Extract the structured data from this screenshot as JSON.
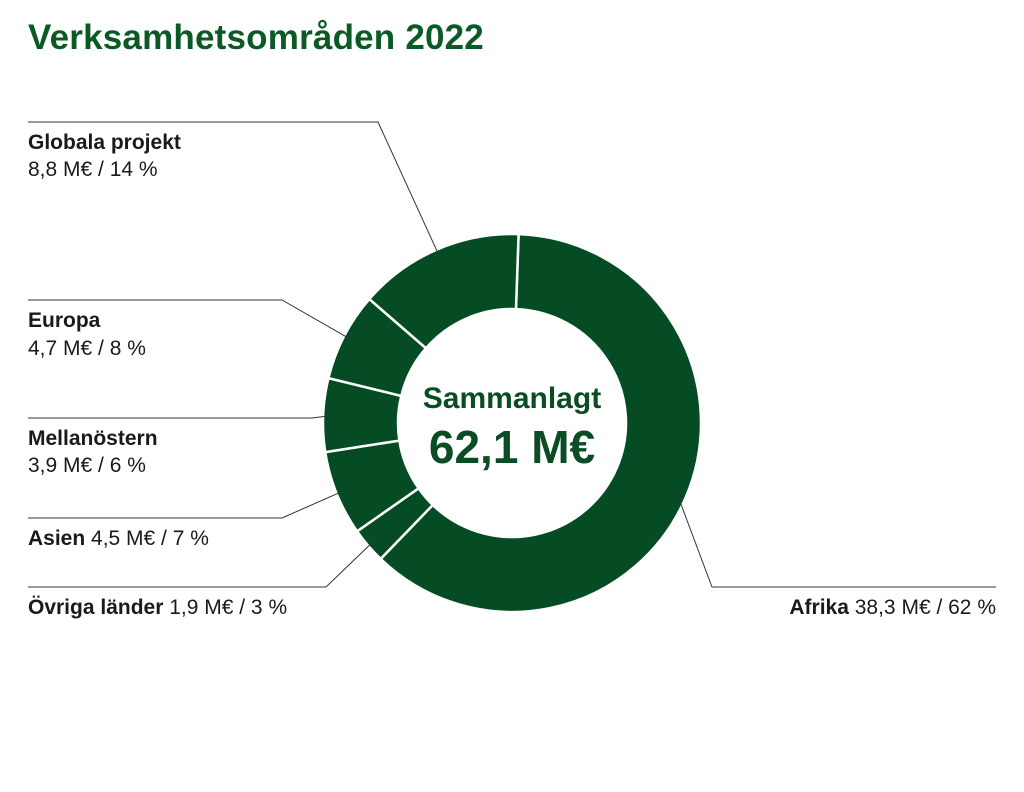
{
  "title": "Verksamhetsområden 2022",
  "center": {
    "label": "Sammanlagt",
    "value": "62,1 M€"
  },
  "colors": {
    "slice": "#054c25",
    "title": "#0b5a26",
    "center": "#0a4d25",
    "line": "#333333"
  },
  "chart_data": {
    "type": "pie",
    "title": "Verksamhetsområden 2022",
    "unit": "M€",
    "total": 62.1,
    "slices": [
      {
        "name": "Afrika",
        "value": 38.3,
        "value_label": "38,3 M€ / 62 %",
        "percent": 62
      },
      {
        "name": "Övriga länder",
        "value": 1.9,
        "value_label": "1,9 M€ / 3 %",
        "percent": 3
      },
      {
        "name": "Asien",
        "value": 4.5,
        "value_label": "4,5 M€ / 7 %",
        "percent": 7
      },
      {
        "name": "Mellanöstern",
        "value": 3.9,
        "value_label": "3,9 M€ / 6 %",
        "percent": 6
      },
      {
        "name": "Europa",
        "value": 4.7,
        "value_label": "4,7 M€ / 8 %",
        "percent": 8
      },
      {
        "name": "Globala projekt",
        "value": 8.8,
        "value_label": "8,8 M€ / 14 %",
        "percent": 14
      }
    ]
  }
}
